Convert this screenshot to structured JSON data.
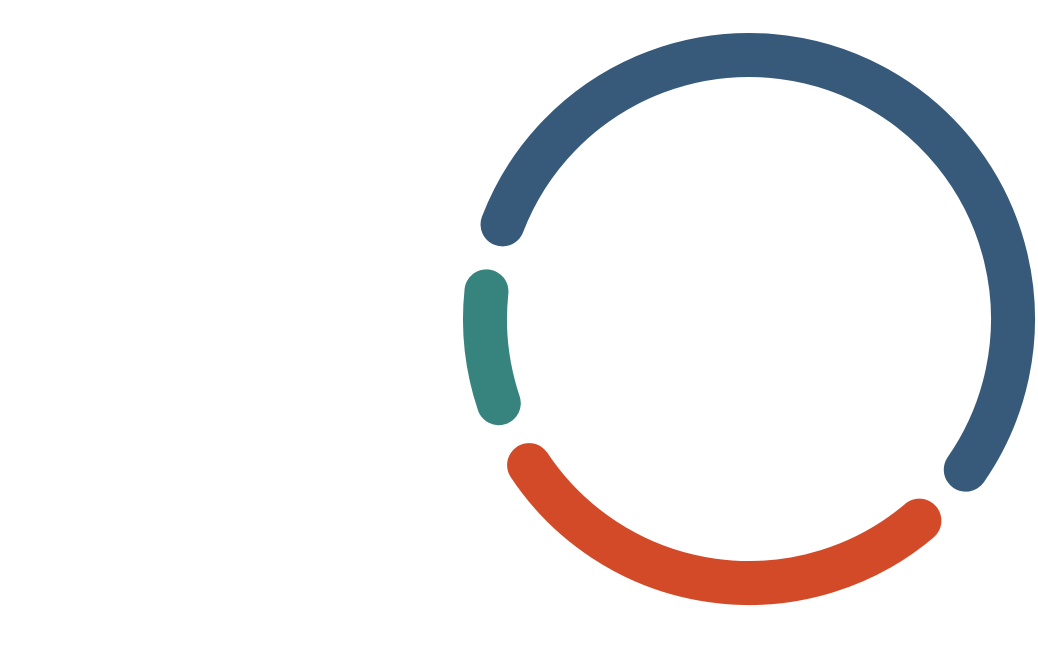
{
  "chart_data": {
    "type": "donut",
    "values": [
      58,
      31,
      11
    ],
    "colors": [
      "#375a7a",
      "#d24a27",
      "#37837d"
    ]
  }
}
